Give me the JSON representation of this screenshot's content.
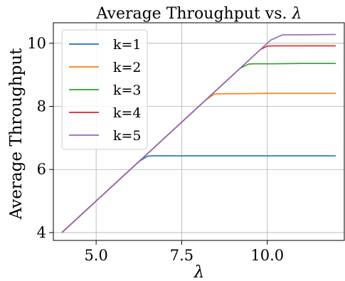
{
  "chart_data": {
    "type": "line",
    "title": "Average Throughput vs. ",
    "title_symbol": "λ",
    "xlabel": "λ",
    "ylabel": "Average Throughput",
    "xlim": [
      3.75,
      12.25
    ],
    "ylim": [
      3.75,
      10.65
    ],
    "xticks": [
      5.0,
      7.5,
      10.0
    ],
    "xtick_labels": [
      "5.0",
      "7.5",
      "10.0"
    ],
    "yticks": [
      4,
      6,
      8,
      10
    ],
    "ytick_labels": [
      "4",
      "6",
      "8",
      "10"
    ],
    "grid": true,
    "legend_position": "upper-left",
    "series": [
      {
        "name": "k=1",
        "color": "#1f77b4",
        "x": [
          4.0,
          6.25,
          6.5,
          6.6,
          7.0,
          8.0,
          9.0,
          10.0,
          11.0,
          12.0
        ],
        "y": [
          4.0,
          6.25,
          6.42,
          6.43,
          6.43,
          6.43,
          6.43,
          6.43,
          6.43,
          6.43
        ]
      },
      {
        "name": "k=2",
        "color": "#ff7f0e",
        "x": [
          4.0,
          8.2,
          8.45,
          8.6,
          9.0,
          10.0,
          11.0,
          12.0
        ],
        "y": [
          4.0,
          8.2,
          8.39,
          8.4,
          8.4,
          8.41,
          8.41,
          8.41
        ]
      },
      {
        "name": "k=3",
        "color": "#2ca02c",
        "x": [
          4.0,
          9.2,
          9.45,
          9.6,
          10.0,
          11.0,
          12.0
        ],
        "y": [
          4.0,
          9.2,
          9.34,
          9.35,
          9.35,
          9.36,
          9.36
        ]
      },
      {
        "name": "k=4",
        "color": "#d62728",
        "x": [
          4.0,
          9.8,
          10.0,
          10.2,
          11.0,
          12.0
        ],
        "y": [
          4.0,
          9.8,
          9.91,
          9.92,
          9.92,
          9.92
        ]
      },
      {
        "name": "k=5",
        "color": "#9467bd",
        "x": [
          4.0,
          10.1,
          10.45,
          10.6,
          11.0,
          12.0
        ],
        "y": [
          4.0,
          10.1,
          10.27,
          10.27,
          10.27,
          10.28
        ]
      }
    ]
  }
}
